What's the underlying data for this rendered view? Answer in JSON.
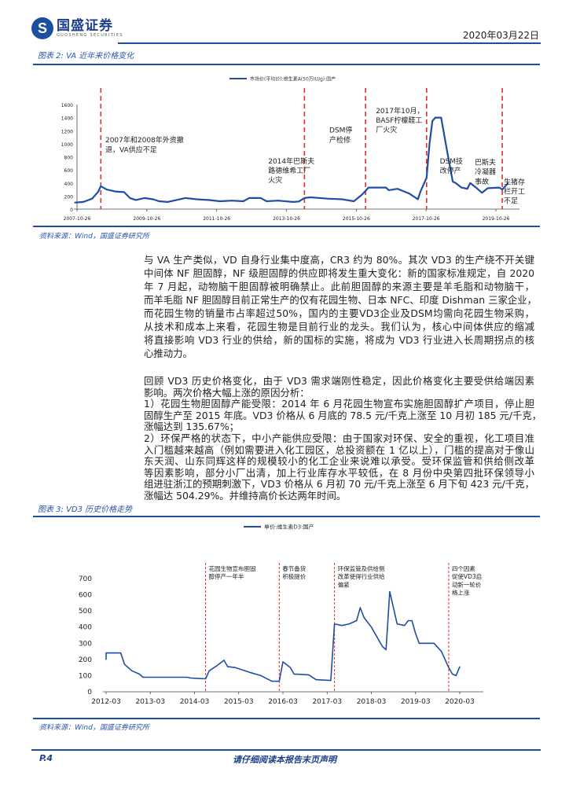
{
  "header": {
    "logo_text": "国盛证券",
    "logo_en": "GUOSHENG SECURITIES",
    "date": "2020年03月22日"
  },
  "figure2": {
    "title": "图表 2:  VA 近年来价格变化",
    "source": "资料来源：Wind，国盛证券研究所"
  },
  "figure3": {
    "title": "图表 3:  VD3 历史价格走势",
    "source": "资料来源：Wind，国盛证券研究所"
  },
  "body": {
    "para1": [
      "与 VA 生产类似，VD 自身行业集中度高，CR3 约为 80%。其次 VD3 的生产绕不开关键",
      "中间体 NF 胆固醇，NF 级胆固醇的供应即将发生重大变化：新的国家标准规定，自 2020",
      "年 7 月起，动物脑干胆固醇被明确禁止。此前胆固醇的来源主要是羊毛脂和动物脑干，",
      "而羊毛脂 NF 胆固醇目前正常生产的仅有花园生物、日本 NFC、印度 Dishman 三家企业，",
      "而花园生物的销量市占率超过50%，国内的主要VD3企业及DSM均需向花园生物采购，",
      "从技术和成本上来看，花园生物是目前行业的龙头。我们认为，核心中间体供应的缩减",
      "将直接影响 VD3 行业的供给，新的国标的实施，将成为 VD3 行业进入长周期拐点的核",
      "心推动力。"
    ],
    "para2": [
      "回顾 VD3 历史价格变化，由于 VD3 需求端刚性稳定，因此价格变化主要受供给端因素",
      "影响。两次价格大幅上涨的原因分析：",
      "1）花园生物胆固醇产能受限：2014 年 6 月花园生物宣布实施胆固醇扩产项目，停止胆",
      "固醇生产至 2015 年底。VD3 价格从 6 月底的 78.5 元/千克上涨至 10 月初 185 元/千克，",
      "涨幅达到 135.67%；",
      "2）环保严格的状态下，中小产能供应受限：由于国家对环保、安全的重视，化工项目准",
      "入门槛越来越高（例如需要进入化工园区，总投资额在 1 亿以上），门槛的提高对于像山",
      "东天润、山东同辉这样的规模较小的化工企业来说难以承受。受环保监管和供给侧改革",
      "等因素影响，部分小厂出清，加上行业库存水平较低，在 8 月份中央第四批环保领导小",
      "组进驻浙江的预期刺激下，VD3 价格从 6 月初 70 元/千克上涨至 6 月下旬 423 元/千克，",
      "涨幅达 504.29%。并维持高价长达两年时间。"
    ]
  },
  "footer": {
    "page": "P.4",
    "notice": "请仔细阅读本报告末页声明"
  },
  "colors": {
    "brand": "#1d4fa0",
    "series": "#1f4ea3",
    "marker_line": "#e03030"
  },
  "chart_data": [
    {
      "type": "line",
      "title": "",
      "xlabel": "",
      "ylabel": "",
      "legend": "市场价(平均价):维生素A(50万IU/g):国产",
      "legend_position": "top-right",
      "ylim": [
        0,
        1600
      ],
      "yticks": [
        "0",
        "200",
        "400",
        "600",
        "800",
        "1000",
        "1200",
        "1400",
        "1600"
      ],
      "xticks": [
        "2007-10-26",
        "2009-10-26",
        "2011-10-26",
        "2013-10-26",
        "2015-10-26",
        "2017-10-26",
        "2019-10-26"
      ],
      "x": [
        "2007-10",
        "2008-01",
        "2008-04",
        "2008-06",
        "2008-07",
        "2008-09",
        "2008-12",
        "2009-03",
        "2009-05",
        "2009-07",
        "2009-10",
        "2010-01",
        "2010-03",
        "2010-06",
        "2010-09",
        "2010-12",
        "2011-04",
        "2011-08",
        "2011-12",
        "2012-04",
        "2012-08",
        "2012-10",
        "2013-02",
        "2013-04",
        "2013-08",
        "2014-01",
        "2014-03",
        "2014-05",
        "2014-07",
        "2015-01",
        "2015-06",
        "2015-10",
        "2016-01",
        "2016-03",
        "2016-09",
        "2016-10",
        "2017-01",
        "2017-05",
        "2017-08",
        "2017-09",
        "2017-11",
        "2017-12",
        "2018-01",
        "2018-02",
        "2018-04",
        "2018-06",
        "2018-08",
        "2018-09",
        "2018-11",
        "2019-01",
        "2019-02",
        "2019-04",
        "2019-06",
        "2019-08",
        "2019-12",
        "2020-01",
        "2020-03"
      ],
      "y": [
        100,
        110,
        160,
        260,
        350,
        300,
        270,
        260,
        170,
        140,
        170,
        150,
        120,
        110,
        140,
        170,
        150,
        140,
        120,
        130,
        120,
        170,
        170,
        120,
        130,
        110,
        115,
        170,
        180,
        160,
        150,
        120,
        230,
        330,
        330,
        290,
        310,
        240,
        150,
        280,
        480,
        1000,
        1350,
        1400,
        1400,
        900,
        420,
        400,
        330,
        310,
        400,
        330,
        250,
        320,
        330,
        300,
        400
      ],
      "markers": [
        "2008-07",
        "2014-05",
        "2016-02",
        "2017-11",
        "2020-01"
      ],
      "annotations": [
        {
          "at": "2008-08",
          "lines": [
            "2007年和2008年外资撤",
            "退，VA供应不足"
          ],
          "value": 1020
        },
        {
          "at": "2013-04",
          "lines": [
            "2014年巴斯夫",
            "路德维希工厂",
            "火灾"
          ],
          "value": 700
        },
        {
          "at": "2015-01",
          "lines": [
            "DSM停",
            "产检修"
          ],
          "value": 1170
        },
        {
          "at": "2016-05",
          "lines": [
            "2017年10月，",
            "BASF柠檬醛工",
            "厂火灾"
          ],
          "value": 1470
        },
        {
          "at": "2018-03",
          "lines": [
            "DSM技",
            "改停产"
          ],
          "value": 700
        },
        {
          "at": "2019-03",
          "lines": [
            "巴斯夫",
            "冷凝器",
            "事故"
          ],
          "value": 680
        },
        {
          "at": "2020-01",
          "lines": [
            "生猪存",
            "栏开工",
            "不足"
          ],
          "value": 380
        }
      ]
    },
    {
      "type": "line",
      "title": "",
      "xlabel": "",
      "ylabel": "",
      "legend": "单价:维生素D3:国产",
      "legend_position": "top",
      "ylim": [
        0,
        700
      ],
      "yticks": [
        "0",
        "100",
        "200",
        "300",
        "400",
        "500",
        "600",
        "700"
      ],
      "xticks": [
        "2012-03",
        "2013-03",
        "2014-03",
        "2015-03",
        "2016-03",
        "2017-03",
        "2018-03",
        "2019-03",
        "2020-03"
      ],
      "x": [
        "2012-03",
        "2012-03",
        "2012-07",
        "2012-08",
        "2012-10",
        "2012-12",
        "2013-01",
        "2014-01",
        "2014-02",
        "2014-06",
        "2014-07",
        "2014-09",
        "2014-11",
        "2014-12",
        "2015-02",
        "2015-06",
        "2015-09",
        "2015-12",
        "2016-01",
        "2016-02",
        "2016-03",
        "2016-05",
        "2016-06",
        "2016-10",
        "2016-12",
        "2017-04",
        "2017-05",
        "2017-07",
        "2017-09",
        "2017-11",
        "2017-12",
        "2018-01",
        "2018-03",
        "2018-05",
        "2018-06",
        "2018-07",
        "2018-08",
        "2018-09",
        "2018-10",
        "2018-12",
        "2019-01",
        "2019-02",
        "2019-03",
        "2019-04",
        "2019-08",
        "2019-10",
        "2019-12",
        "2020-01",
        "2020-02",
        "2020-03"
      ],
      "y": [
        200,
        240,
        240,
        170,
        130,
        110,
        90,
        90,
        85,
        80,
        130,
        160,
        195,
        155,
        150,
        120,
        100,
        65,
        65,
        65,
        185,
        150,
        110,
        105,
        75,
        70,
        420,
        410,
        420,
        440,
        520,
        460,
        400,
        320,
        280,
        260,
        620,
        520,
        420,
        410,
        440,
        440,
        360,
        300,
        300,
        250,
        150,
        110,
        100,
        155
      ],
      "markers": [
        "2014-06",
        "2016-02",
        "2017-05",
        "2019-12"
      ],
      "annotations": [
        {
          "at": "2014-06",
          "lines": [
            "花园生物宣布胆固",
            "醇停产一年半"
          ]
        },
        {
          "at": "2016-02",
          "lines": [
            "春节备货",
            "积极提价"
          ]
        },
        {
          "at": "2017-05",
          "lines": [
            "环保监管及供给侧",
            "改革使得行业供给",
            "偏紧"
          ]
        },
        {
          "at": "2019-12",
          "lines": [
            "四个因素",
            "促使VD3启",
            "动新一轮价",
            "格上涨"
          ]
        }
      ]
    }
  ]
}
